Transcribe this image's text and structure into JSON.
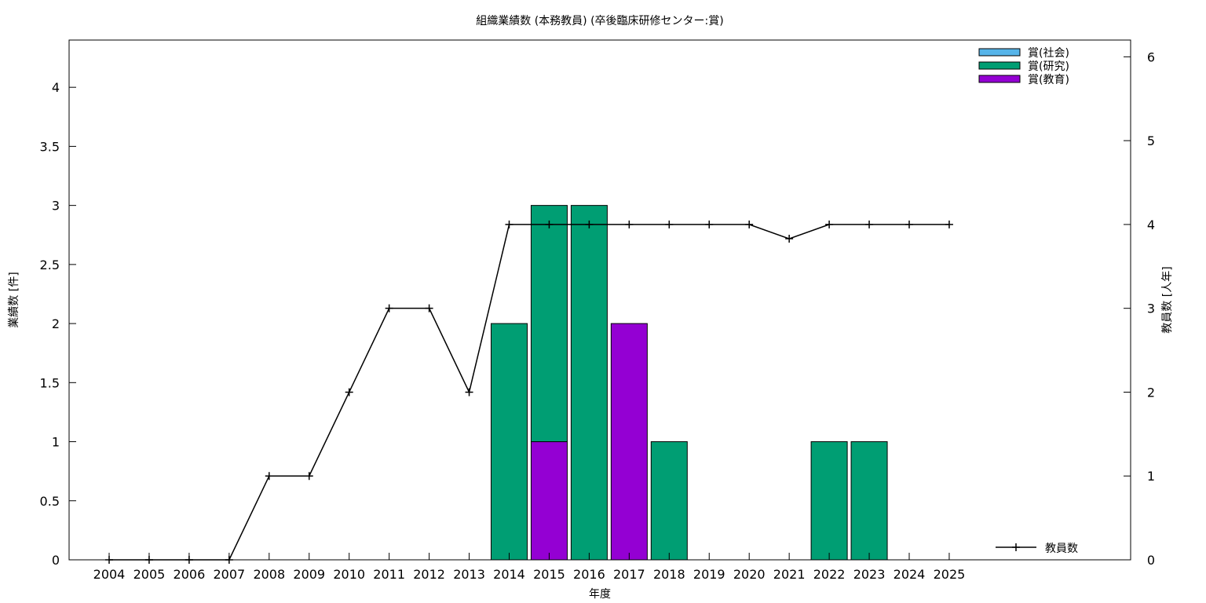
{
  "chart_data": {
    "type": "bar",
    "title": "組織業績数 (本務教員) (卒後臨床研修センター:賞)",
    "xlabel": "年度",
    "ylabel": "業績数 [件]",
    "y2label": "教員数 [人年]",
    "categories": [
      "2004",
      "2005",
      "2006",
      "2007",
      "2008",
      "2009",
      "2010",
      "2011",
      "2012",
      "2013",
      "2014",
      "2015",
      "2016",
      "2017",
      "2018",
      "2019",
      "2020",
      "2021",
      "2022",
      "2023",
      "2024",
      "2025"
    ],
    "ylim": [
      0,
      4.4
    ],
    "yticks": [
      "0",
      "0.5",
      "1",
      "1.5",
      "2",
      "2.5",
      "3",
      "3.5",
      "4"
    ],
    "y2lim": [
      0,
      6.2
    ],
    "y2ticks": [
      "0",
      "1",
      "2",
      "3",
      "4",
      "5",
      "6"
    ],
    "stacked": true,
    "series": [
      {
        "name": "賞(社会)",
        "color": "#56b4e9",
        "values": [
          0,
          0,
          0,
          0,
          0,
          0,
          0,
          0,
          0,
          0,
          0,
          0,
          0,
          0,
          0,
          0,
          0,
          0,
          0,
          0,
          0,
          0
        ]
      },
      {
        "name": "賞(研究)",
        "color": "#009e73",
        "values": [
          0,
          0,
          0,
          0,
          0,
          0,
          0,
          0,
          0,
          0,
          2,
          2,
          3,
          0,
          1,
          0,
          0,
          0,
          1,
          1,
          0,
          0
        ]
      },
      {
        "name": "賞(教育)",
        "color": "#9400d3",
        "values": [
          0,
          0,
          0,
          0,
          0,
          0,
          0,
          0,
          0,
          0,
          0,
          1,
          0,
          2,
          0,
          0,
          0,
          0,
          0,
          0,
          0,
          0
        ]
      }
    ],
    "stack_order": [
      "賞(教育)",
      "賞(研究)",
      "賞(社会)"
    ],
    "line_series": {
      "name": "教員数",
      "axis": "y2",
      "color": "#000000",
      "marker": "plus",
      "values": [
        0,
        0,
        0,
        0,
        1,
        1,
        2,
        3,
        3,
        2,
        4,
        4,
        4,
        4,
        4,
        4,
        4,
        3.83,
        4,
        4,
        4,
        4
      ]
    },
    "legend_position": "top-right",
    "line_legend_position": "bottom-right",
    "grid": false
  }
}
